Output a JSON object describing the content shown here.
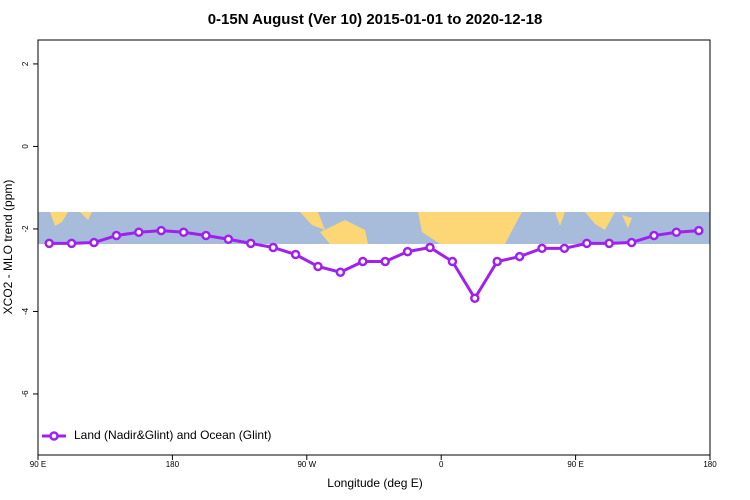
{
  "chart_data": {
    "type": "line",
    "title": "0-15N August (Ver 10)   2015-01-01 to 2020-12-18",
    "x_label": "Longitude (deg E)",
    "y_label": "XCO2 - MLO trend (ppm)",
    "x": [
      97.5,
      112.5,
      127.5,
      142.5,
      157.5,
      172.5,
      187.5,
      202.5,
      217.5,
      232.5,
      247.5,
      262.5,
      277.5,
      292.5,
      307.5,
      322.5,
      337.5,
      352.5,
      367.5,
      382.5,
      397.5,
      412.5,
      427.5,
      442.5,
      457.5,
      472.5,
      487.5,
      502.5,
      517.5,
      532.5
    ],
    "series": [
      {
        "name": "Land (Nadir&Glint) and Ocean (Glint)",
        "color": "#a020f0",
        "values": [
          -2.35,
          -2.35,
          -2.33,
          -2.16,
          -2.08,
          -2.04,
          -2.08,
          -2.16,
          -2.25,
          -2.35,
          -2.45,
          -2.62,
          -2.91,
          -3.05,
          -2.79,
          -2.79,
          -2.55,
          -2.45,
          -2.79,
          -3.68,
          -2.79,
          -2.67,
          -2.47,
          -2.47,
          -2.35,
          -2.35,
          -2.33,
          -2.16,
          -2.08,
          -2.04
        ]
      }
    ],
    "xlim": [
      90,
      540
    ],
    "xticks": [
      {
        "value": 90,
        "label": "90 E"
      },
      180,
      {
        "value": 270,
        "label": "90 W"
      },
      {
        "value": 360,
        "label": "0"
      },
      {
        "value": 450,
        "label": "90 E"
      },
      {
        "value": 540,
        "label": "180"
      }
    ],
    "ylim": [
      -7.48,
      2.58
    ],
    "yticks": [
      2,
      0,
      -2,
      -4,
      -6
    ],
    "legend": "bottom-left"
  }
}
